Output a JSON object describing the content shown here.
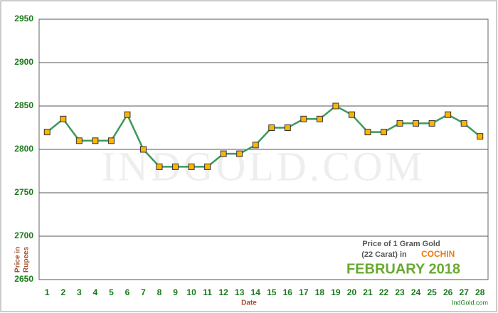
{
  "chart_data": {
    "type": "line",
    "categories": [
      "1",
      "2",
      "3",
      "4",
      "5",
      "6",
      "7",
      "8",
      "9",
      "10",
      "11",
      "12",
      "13",
      "14",
      "15",
      "16",
      "17",
      "18",
      "19",
      "20",
      "21",
      "22",
      "23",
      "24",
      "25",
      "26",
      "27",
      "28"
    ],
    "values": [
      2820,
      2835,
      2810,
      2810,
      2810,
      2840,
      2800,
      2780,
      2780,
      2780,
      2780,
      2795,
      2795,
      2805,
      2825,
      2825,
      2835,
      2835,
      2850,
      2840,
      2820,
      2820,
      2830,
      2830,
      2830,
      2840,
      2830,
      2815
    ],
    "color": "#3c9a5c",
    "marker_color": "#ffb400",
    "ylim": [
      2650,
      2950
    ],
    "yticks": [
      2650,
      2700,
      2750,
      2800,
      2850,
      2900,
      2950
    ],
    "grid": true,
    "x_label": "Date",
    "y_label": [
      "Price in",
      "Rupees"
    ],
    "annotation": {
      "line1": "Price of 1 Gram Gold",
      "line2": "(22 Carat) in",
      "city": "COCHIN",
      "month": "FEBRUARY 2018"
    },
    "watermark": "INDGOLD.COM",
    "source": "IndGold.com"
  }
}
